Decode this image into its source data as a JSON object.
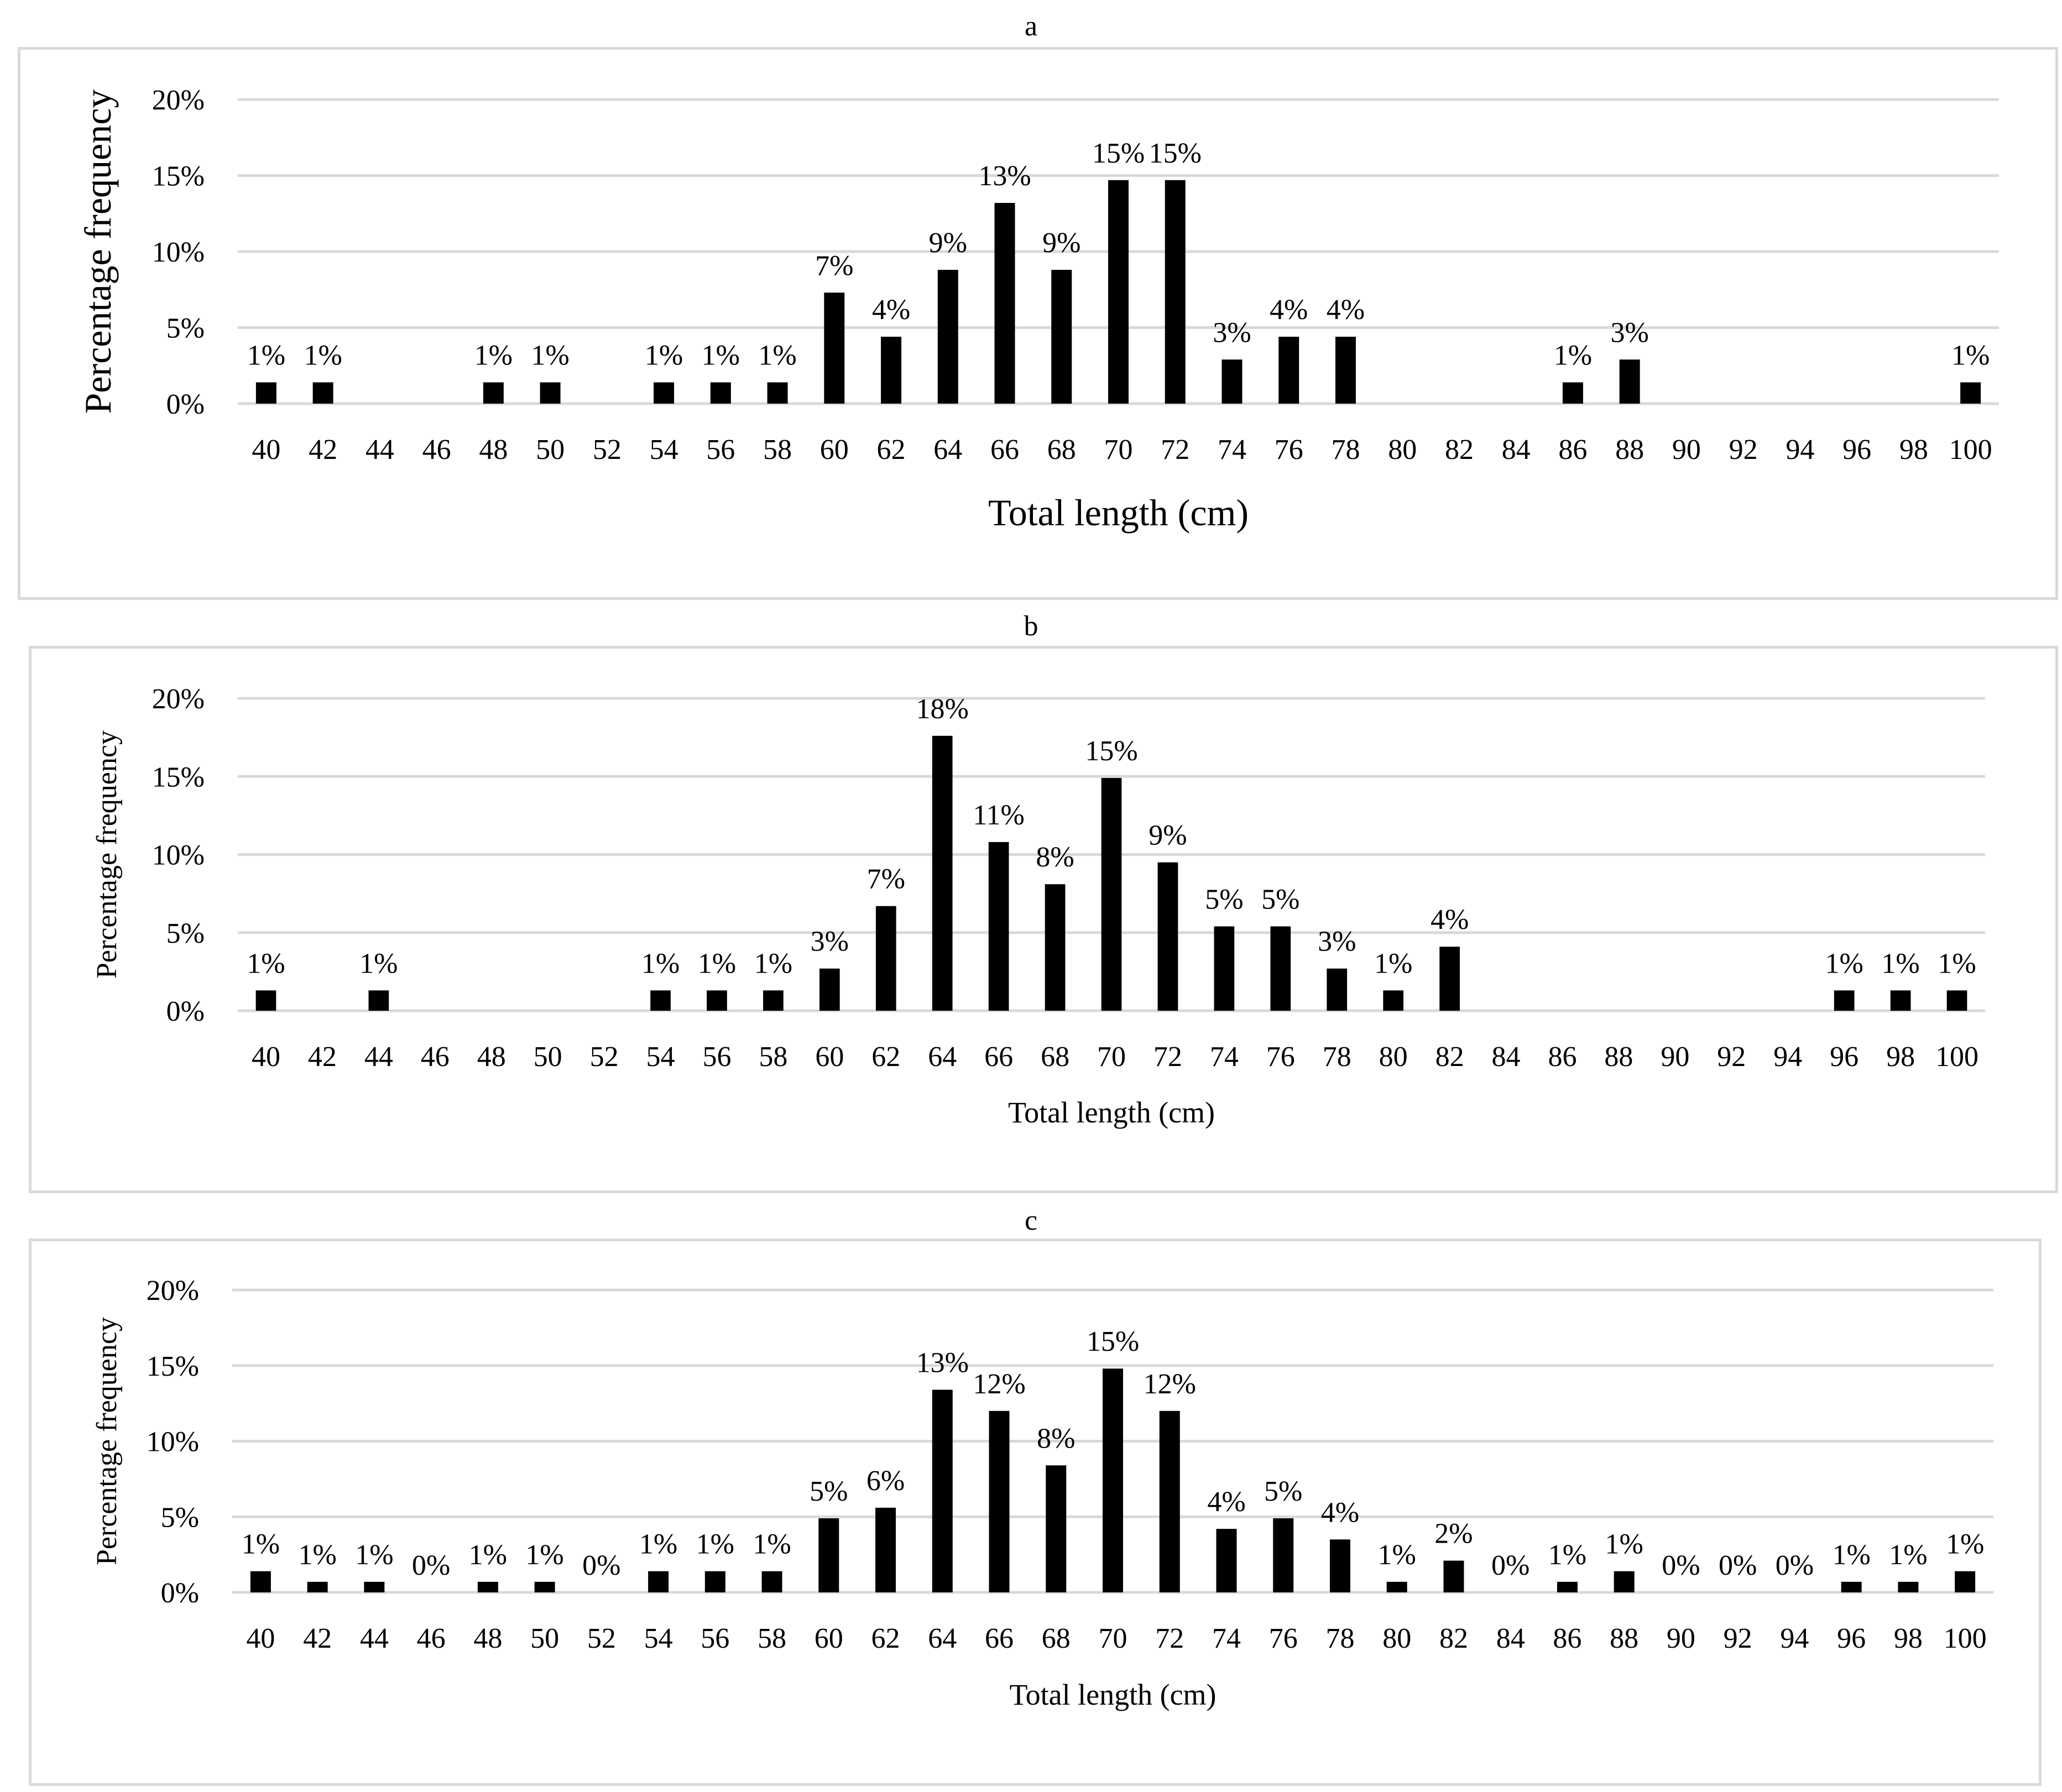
{
  "colors": {
    "bar": "#000000",
    "grid": "#d9d9d9",
    "frame": "#d9d9d9"
  },
  "chart_data": [
    {
      "panel": "a",
      "type": "bar",
      "title": "",
      "xlabel": "Total length (cm)",
      "ylabel": "Percentage  frequency",
      "ylim": [
        0,
        20
      ],
      "yticks": [
        "0%",
        "5%",
        "10%",
        "15%",
        "20%"
      ],
      "grid": true,
      "categories": [
        "40",
        "42",
        "44",
        "46",
        "48",
        "50",
        "52",
        "54",
        "56",
        "58",
        "60",
        "62",
        "64",
        "66",
        "68",
        "70",
        "72",
        "74",
        "76",
        "78",
        "80",
        "82",
        "84",
        "86",
        "88",
        "90",
        "92",
        "94",
        "96",
        "98",
        "100"
      ],
      "values": [
        1.4,
        1.4,
        0,
        0,
        1.4,
        1.4,
        0,
        1.4,
        1.4,
        1.4,
        7.3,
        4.4,
        8.8,
        13.2,
        8.8,
        14.7,
        14.7,
        2.9,
        4.4,
        4.4,
        0,
        0,
        0,
        1.4,
        2.9,
        0,
        0,
        0,
        0,
        0,
        1.4
      ],
      "labels": [
        "1%",
        "1%",
        "",
        "",
        "1%",
        "1%",
        "",
        "1%",
        "1%",
        "1%",
        "7%",
        "4%",
        "9%",
        "13%",
        "9%",
        "15%",
        "15%",
        "3%",
        "4%",
        "4%",
        "",
        "",
        "",
        "1%",
        "3%",
        "",
        "",
        "",
        "",
        "",
        "1%"
      ]
    },
    {
      "panel": "b",
      "type": "bar",
      "title": "",
      "xlabel": "Total length (cm)",
      "ylabel": "Percentage  frequency",
      "ylim": [
        0,
        20
      ],
      "yticks": [
        "0%",
        "5%",
        "10%",
        "15%",
        "20%"
      ],
      "grid": true,
      "categories": [
        "40",
        "42",
        "44",
        "46",
        "48",
        "50",
        "52",
        "54",
        "56",
        "58",
        "60",
        "62",
        "64",
        "66",
        "68",
        "70",
        "72",
        "74",
        "76",
        "78",
        "80",
        "82",
        "84",
        "86",
        "88",
        "90",
        "92",
        "94",
        "96",
        "98",
        "100"
      ],
      "values": [
        1.3,
        0,
        1.3,
        0,
        0,
        0,
        0,
        1.3,
        1.3,
        1.3,
        2.7,
        6.7,
        17.6,
        10.8,
        8.1,
        14.9,
        9.5,
        5.4,
        5.4,
        2.7,
        1.3,
        4.1,
        0,
        0,
        0,
        0,
        0,
        0,
        1.3,
        1.3,
        1.3
      ],
      "labels": [
        "1%",
        "",
        "1%",
        "",
        "",
        "",
        "",
        "1%",
        "1%",
        "1%",
        "3%",
        "7%",
        "18%",
        "11%",
        "8%",
        "15%",
        "9%",
        "5%",
        "5%",
        "3%",
        "1%",
        "4%",
        "",
        "",
        "",
        "",
        "",
        "",
        "1%",
        "1%",
        "1%"
      ]
    },
    {
      "panel": "c",
      "type": "bar",
      "title": "",
      "xlabel": "Total length (cm)",
      "ylabel": "Percentage  frequency",
      "ylim": [
        0,
        20
      ],
      "yticks": [
        "0%",
        "5%",
        "10%",
        "15%",
        "20%"
      ],
      "grid": true,
      "categories": [
        "40",
        "42",
        "44",
        "46",
        "48",
        "50",
        "52",
        "54",
        "56",
        "58",
        "60",
        "62",
        "64",
        "66",
        "68",
        "70",
        "72",
        "74",
        "76",
        "78",
        "80",
        "82",
        "84",
        "86",
        "88",
        "90",
        "92",
        "94",
        "96",
        "98",
        "100"
      ],
      "values": [
        1.4,
        0.7,
        0.7,
        0,
        0.7,
        0.7,
        0,
        1.4,
        1.4,
        1.4,
        4.9,
        5.6,
        13.4,
        12.0,
        8.4,
        14.8,
        12.0,
        4.2,
        4.9,
        3.5,
        0.7,
        2.1,
        0,
        0.7,
        1.4,
        0,
        0,
        0,
        0.7,
        0.7,
        1.4
      ],
      "labels": [
        "1%",
        "1%",
        "1%",
        "0%",
        "1%",
        "1%",
        "0%",
        "1%",
        "1%",
        "1%",
        "5%",
        "6%",
        "13%",
        "12%",
        "8%",
        "15%",
        "12%",
        "4%",
        "5%",
        "4%",
        "1%",
        "2%",
        "0%",
        "1%",
        "1%",
        "0%",
        "0%",
        "0%",
        "1%",
        "1%",
        "1%"
      ]
    }
  ]
}
